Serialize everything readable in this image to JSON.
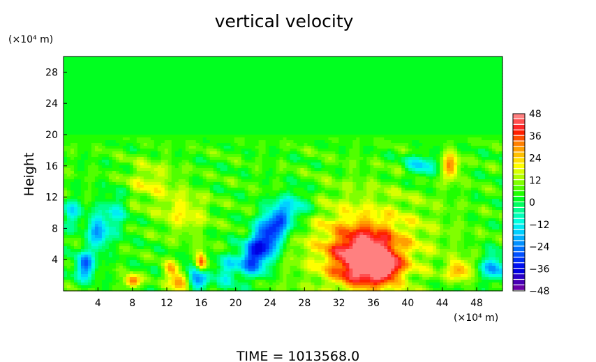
{
  "chart_data": {
    "type": "heatmap",
    "title": "vertical velocity",
    "ylabel": "Height",
    "y_unit": "(×10⁴ m)",
    "x_unit": "(×10⁴ m)",
    "xlim": [
      0,
      51
    ],
    "ylim": [
      0,
      30
    ],
    "x_ticks": [
      4,
      8,
      12,
      16,
      20,
      24,
      28,
      32,
      36,
      40,
      44,
      48
    ],
    "y_ticks": [
      4,
      8,
      12,
      16,
      20,
      24,
      28
    ],
    "colorbar": {
      "min": -48,
      "max": 48,
      "step": 3,
      "tick_labels": [
        "48",
        "36",
        "24",
        "12",
        "0",
        "−12",
        "−24",
        "−36",
        "−48"
      ]
    },
    "background_value_above_20": 0,
    "features": [
      {
        "x": 35,
        "y": 4,
        "value": 42,
        "sx": 2.6,
        "sy": 2.6
      },
      {
        "x": 35,
        "y": 6.5,
        "value": 16,
        "sx": 6,
        "sy": 4.5
      },
      {
        "x": 37.5,
        "y": 3,
        "value": 20,
        "sx": 1.2,
        "sy": 1.2
      },
      {
        "x": 22,
        "y": 4,
        "value": -34,
        "sx": 1.2,
        "sy": 1.5
      },
      {
        "x": 23.5,
        "y": 6.5,
        "value": -36,
        "sx": 1.2,
        "sy": 1.6
      },
      {
        "x": 25,
        "y": 9,
        "value": -30,
        "sx": 1.2,
        "sy": 1.5
      },
      {
        "x": 27,
        "y": 11,
        "value": -16,
        "sx": 1.5,
        "sy": 1.5
      },
      {
        "x": 2.5,
        "y": 3.2,
        "value": -32,
        "sx": 0.8,
        "sy": 1.2
      },
      {
        "x": 4,
        "y": 7.5,
        "value": -26,
        "sx": 0.8,
        "sy": 1.6
      },
      {
        "x": 16,
        "y": 3.5,
        "value": 42,
        "sx": 0.5,
        "sy": 1
      },
      {
        "x": 15.6,
        "y": 2,
        "value": -34,
        "sx": 0.9,
        "sy": 1.2
      },
      {
        "x": 8,
        "y": 1.2,
        "value": 32,
        "sx": 0.6,
        "sy": 0.6
      },
      {
        "x": 13.5,
        "y": 1.2,
        "value": 30,
        "sx": 0.8,
        "sy": 0.8
      },
      {
        "x": 12.5,
        "y": 2.8,
        "value": 20,
        "sx": 0.6,
        "sy": 0.7
      },
      {
        "x": 45,
        "y": 16,
        "value": 26,
        "sx": 0.7,
        "sy": 1.2
      },
      {
        "x": 46,
        "y": 2.7,
        "value": 24,
        "sx": 0.9,
        "sy": 0.9
      },
      {
        "x": 50,
        "y": 3,
        "value": -26,
        "sx": 1,
        "sy": 1.2
      },
      {
        "x": 41.5,
        "y": 16,
        "value": -20,
        "sx": 1.2,
        "sy": 1
      },
      {
        "x": 19,
        "y": 2.5,
        "value": -16,
        "sx": 1,
        "sy": 1.5
      },
      {
        "x": 6,
        "y": 10,
        "value": -14,
        "sx": 1,
        "sy": 2
      },
      {
        "x": 1,
        "y": 10,
        "value": -18,
        "sx": 0.8,
        "sy": 1.2
      },
      {
        "x": 10,
        "y": 14,
        "value": 12,
        "sx": 2,
        "sy": 2
      },
      {
        "x": 14,
        "y": 10,
        "value": 14,
        "sx": 2,
        "sy": 2
      }
    ],
    "footer": "TIME  =  1013568.0"
  },
  "colors": {
    "palette": [
      "#6a00a8",
      "#4800b4",
      "#2a00c8",
      "#0000e0",
      "#0010f0",
      "#0030f8",
      "#0050ff",
      "#0070ff",
      "#0090ff",
      "#00b0ff",
      "#00d0ff",
      "#00ecf4",
      "#00ffe0",
      "#00ffb8",
      "#00ff90",
      "#00ff60",
      "#00ff20",
      "#20ff00",
      "#50ff00",
      "#80ff00",
      "#b0ff00",
      "#d8ff00",
      "#ffff00",
      "#ffe000",
      "#ffc000",
      "#ffa000",
      "#ff8000",
      "#ff5000",
      "#ff2000",
      "#ff2828",
      "#ff5050",
      "#ff8080"
    ]
  }
}
